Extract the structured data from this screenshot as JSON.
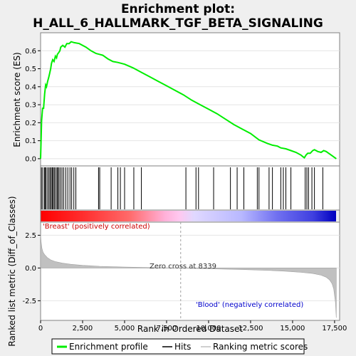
{
  "chart_data": [
    {
      "type": "line",
      "panel": "enrichment",
      "title_line1": "Enrichment plot:",
      "title_line2": "H_ALL_6_HALLMARK_TGF_BETA_SIGNALING",
      "ylabel": "Enrichment score (ES)",
      "xlim": [
        0,
        17800
      ],
      "ylim": [
        -0.04,
        0.7
      ],
      "yticks": [
        "0.0",
        "0.1",
        "0.2",
        "0.3",
        "0.4",
        "0.5",
        "0.6"
      ],
      "grid": true,
      "series": [
        {
          "name": "Enrichment profile",
          "color": "#00ee00",
          "x": [
            0,
            60,
            120,
            180,
            240,
            300,
            350,
            420,
            480,
            530,
            600,
            650,
            720,
            800,
            880,
            950,
            1000,
            1080,
            1150,
            1200,
            1320,
            1450,
            1560,
            1700,
            1820,
            2000,
            2300,
            2700,
            3000,
            3300,
            3500,
            3700,
            4000,
            4300,
            4600,
            5000,
            5500,
            6000,
            6500,
            7000,
            7500,
            8000,
            8500,
            9000,
            9500,
            10000,
            10500,
            11000,
            11500,
            12000,
            12500,
            13000,
            13500,
            13800,
            14100,
            14300,
            14600,
            14900,
            15200,
            15500,
            15700,
            15800,
            15900,
            16050,
            16200,
            16300,
            16500,
            16700,
            16850,
            17000,
            17300,
            17600
          ],
          "y": [
            0.0,
            0.21,
            0.28,
            0.28,
            0.36,
            0.41,
            0.4,
            0.43,
            0.45,
            0.47,
            0.5,
            0.53,
            0.55,
            0.54,
            0.57,
            0.56,
            0.58,
            0.59,
            0.6,
            0.62,
            0.63,
            0.62,
            0.64,
            0.64,
            0.65,
            0.645,
            0.64,
            0.62,
            0.6,
            0.585,
            0.58,
            0.575,
            0.555,
            0.54,
            0.535,
            0.525,
            0.505,
            0.48,
            0.455,
            0.43,
            0.405,
            0.38,
            0.355,
            0.325,
            0.3,
            0.275,
            0.25,
            0.22,
            0.19,
            0.165,
            0.14,
            0.105,
            0.085,
            0.075,
            0.07,
            0.06,
            0.055,
            0.045,
            0.035,
            0.02,
            0.005,
            0.02,
            0.03,
            0.03,
            0.045,
            0.05,
            0.04,
            0.035,
            0.045,
            0.04,
            0.02,
            0.0
          ]
        }
      ]
    },
    {
      "type": "hits",
      "panel": "hits",
      "series": [
        {
          "name": "Hits",
          "color": "#000000",
          "x": [
            50,
            130,
            230,
            270,
            330,
            420,
            500,
            570,
            640,
            700,
            760,
            820,
            900,
            980,
            1030,
            1100,
            1190,
            1280,
            1380,
            1500,
            1620,
            1750,
            1850,
            1980,
            2100,
            3450,
            3520,
            4200,
            4600,
            4750,
            5000,
            5550,
            6000,
            8650,
            9250,
            9400,
            10300,
            11300,
            11700,
            12100,
            12900,
            13000,
            13600,
            13800,
            14300,
            14450,
            14600,
            14900,
            15750,
            15850,
            15950,
            16150,
            16300,
            16800
          ]
        }
      ]
    },
    {
      "type": "area",
      "panel": "ranked",
      "ylabel": "Ranked list metric (Diff_of_Classes)",
      "xlabel": "Rank in Ordered Dataset",
      "xlim": [
        0,
        17800
      ],
      "ylim": [
        -4.0,
        3.5
      ],
      "yticks": [
        "2.5",
        "0.0",
        "-2.5"
      ],
      "xticks": [
        "0",
        "2,500",
        "5,000",
        "7,500",
        "10,000",
        "12,500",
        "15,000",
        "17,500"
      ],
      "grid": true,
      "zero_cross": 8339,
      "series": [
        {
          "name": "Ranking metric scores",
          "color": "#c0c0c0",
          "x": [
            0,
            30,
            80,
            150,
            250,
            400,
            600,
            900,
            1300,
            1800,
            2500,
            3500,
            5000,
            6500,
            8339,
            10000,
            12000,
            13500,
            14500,
            15500,
            16200,
            16700,
            17000,
            17200,
            17350,
            17450,
            17550,
            17600
          ],
          "y": [
            2.6,
            2.0,
            1.5,
            1.2,
            1.0,
            0.8,
            0.62,
            0.48,
            0.37,
            0.28,
            0.2,
            0.13,
            0.07,
            0.03,
            0.0,
            -0.06,
            -0.12,
            -0.18,
            -0.24,
            -0.33,
            -0.42,
            -0.55,
            -0.7,
            -0.9,
            -1.2,
            -1.6,
            -2.6,
            -3.8
          ]
        }
      ]
    }
  ],
  "annotations": {
    "positive_label": "'Breast' (positively correlated)",
    "negative_label": "'Blood' (negatively correlated)",
    "zero_cross_label": "Zero cross at 8339",
    "positive_color": "#cc0000",
    "negative_color": "#0000cc"
  },
  "legend": {
    "placement": "bottom",
    "items": [
      {
        "label": "Enrichment profile",
        "color": "#00ee00",
        "style": "line-thick"
      },
      {
        "label": "Hits",
        "color": "#000000",
        "style": "line"
      },
      {
        "label": "Ranking metric scores",
        "color": "#c0c0c0",
        "style": "line"
      }
    ]
  },
  "colors": {
    "background": "#efefef",
    "plot_bg": "#ffffff",
    "gradient_red": "#ff0000",
    "gradient_pink": "#ffc0ff",
    "gradient_lavender": "#d0d0ff",
    "gradient_blue": "#2020dd"
  }
}
